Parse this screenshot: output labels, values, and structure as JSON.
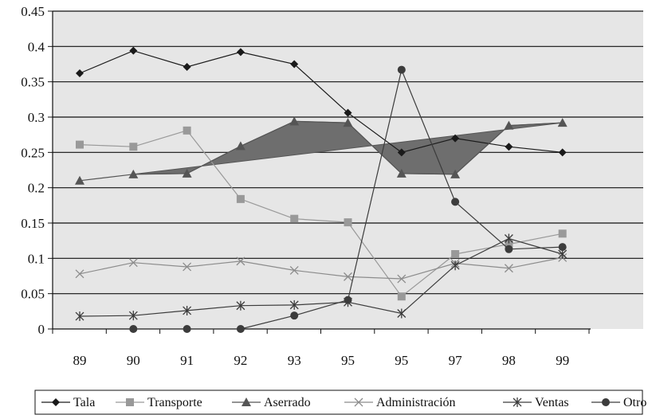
{
  "chart_data": {
    "type": "line",
    "categories": [
      "89",
      "90",
      "91",
      "92",
      "93",
      "95",
      "95",
      "97",
      "98",
      "99"
    ],
    "ylim": [
      0,
      0.45
    ],
    "yticks": [
      "0",
      "0.05",
      "0.1",
      "0.15",
      "0.2",
      "0.25",
      "0.3",
      "0.35",
      "0.4",
      "0.45"
    ],
    "grid": "horizontal",
    "plot_background": "#e6e6e6",
    "legend_position": "bottom",
    "series": [
      {
        "name": "Tala",
        "marker": "diamond",
        "color": "#1a1a1a",
        "values": [
          0.362,
          0.394,
          0.371,
          0.392,
          0.375,
          0.306,
          0.25,
          0.27,
          0.258,
          0.25
        ]
      },
      {
        "name": "Transporte",
        "marker": "square",
        "color": "#999999",
        "values": [
          0.261,
          0.258,
          0.281,
          0.184,
          0.156,
          0.151,
          0.046,
          0.106,
          0.12,
          0.135
        ]
      },
      {
        "name": "Aserrado",
        "marker": "triangle",
        "color": "#555555",
        "values": [
          0.21,
          0.219,
          0.22,
          0.259,
          0.294,
          0.292,
          0.22,
          0.219,
          0.288,
          0.292
        ]
      },
      {
        "name": "Administración",
        "marker": "x",
        "color": "#8c8c8c",
        "values": [
          0.078,
          0.094,
          0.088,
          0.096,
          0.083,
          0.074,
          0.071,
          0.093,
          0.086,
          0.101
        ]
      },
      {
        "name": "Ventas",
        "marker": "star",
        "color": "#3c3c3c",
        "values": [
          0.018,
          0.019,
          0.026,
          0.033,
          0.034,
          0.038,
          0.022,
          0.09,
          0.128,
          0.106
        ]
      },
      {
        "name": "Otro",
        "marker": "circle",
        "color": "#3c3c3c",
        "values": [
          null,
          0.0,
          0.0,
          0.0,
          0.019,
          0.041,
          0.367,
          0.18,
          0.113,
          0.116
        ]
      }
    ]
  }
}
